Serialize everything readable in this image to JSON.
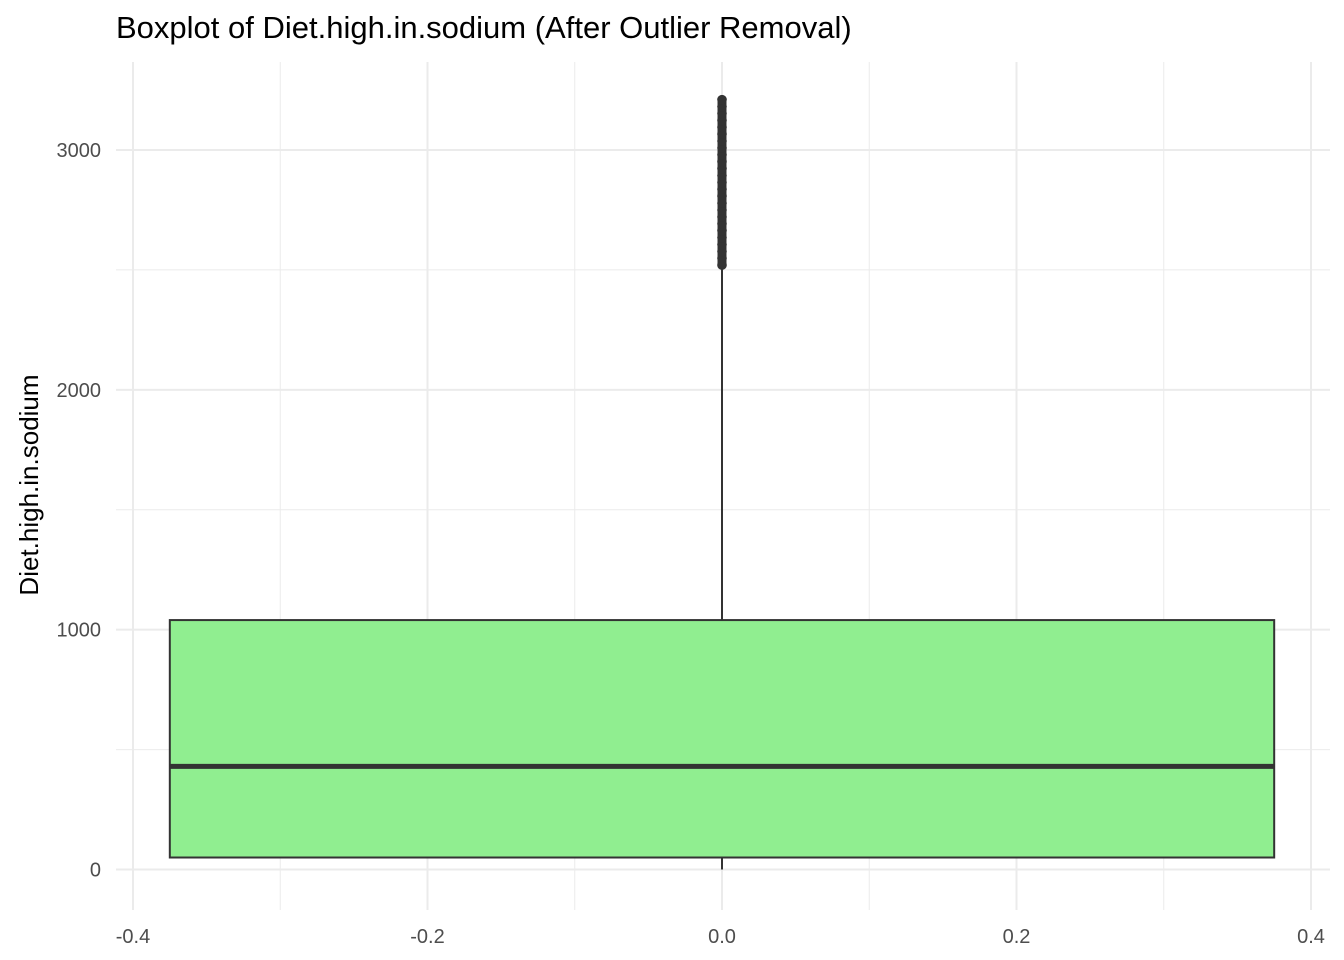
{
  "chart_data": {
    "type": "boxplot",
    "title": "Boxplot of Diet.high.in.sodium (After Outlier Removal)",
    "xlabel": "",
    "ylabel": "Diet.high.in.sodium",
    "xlim": [
      -0.4,
      0.4
    ],
    "ylim": [
      0,
      3000
    ],
    "x_ticks": [
      "-0.4",
      "-0.2",
      "0.0",
      "0.2",
      "0.4"
    ],
    "x_tick_values": [
      -0.4,
      -0.2,
      0.0,
      0.2,
      0.4
    ],
    "y_ticks": [
      "0",
      "1000",
      "2000",
      "3000"
    ],
    "y_tick_values": [
      0,
      1000,
      2000,
      3000
    ],
    "grid": true,
    "box": {
      "x": 0.0,
      "width": 0.75,
      "min": 0,
      "q1": 50,
      "median": 430,
      "q3": 1040,
      "whisker_high": 2520,
      "outliers_range": [
        2520,
        3210
      ]
    },
    "colors": {
      "box_fill": "#90EE90",
      "box_stroke": "#333333",
      "grid": "#ebebeb"
    }
  }
}
